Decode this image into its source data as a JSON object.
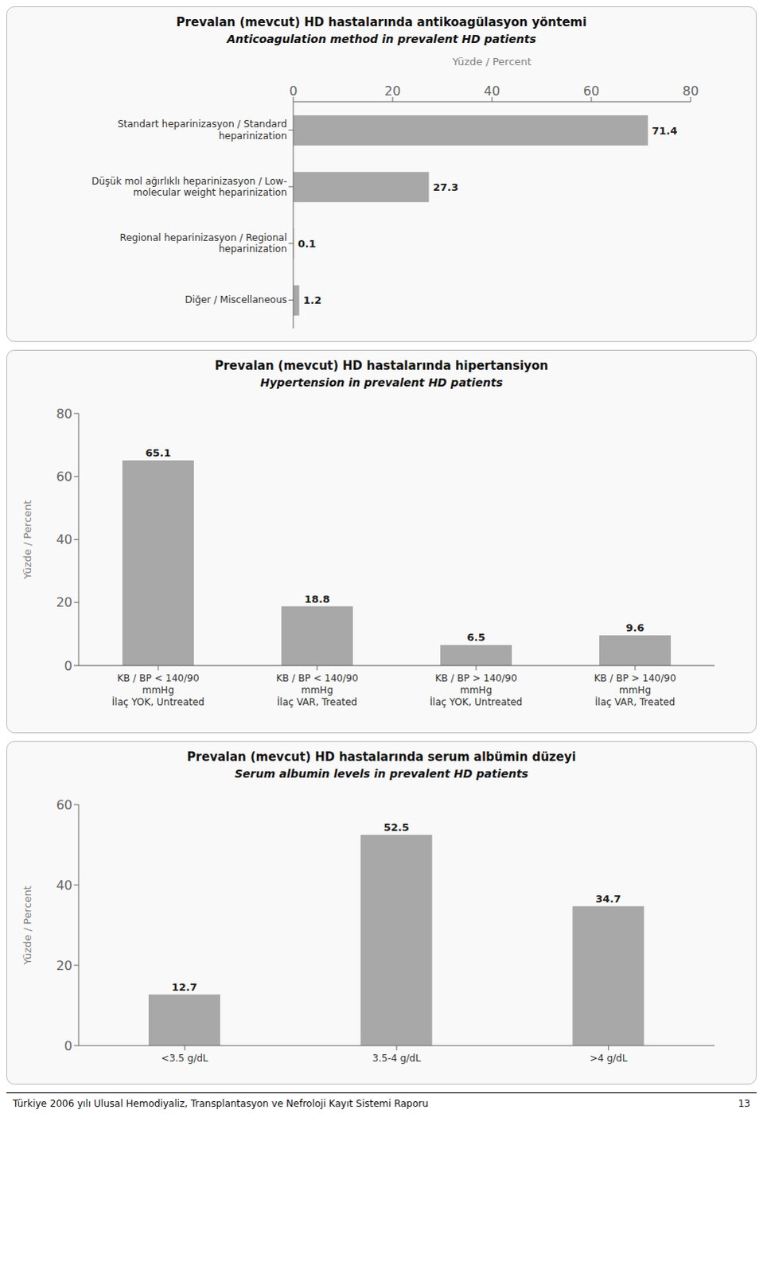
{
  "chart_data": [
    {
      "type": "bar",
      "title": "Prevalan (mevcut) HD hastalarında antikoagülasyon yöntemi",
      "subtitle": "Anticoagulation method in prevalent HD patients",
      "xlabel": "Yüzde / Percent",
      "orientation": "horizontal",
      "categories": [
        "Standart heparinizasyon / Standard\nheparinization",
        "Düşük mol ağırlıklı heparinizasyon / Low-\nmolecular weight heparinization",
        "Regional heparinizasyon / Regional\nheparinization",
        "Diğer / Miscellaneous"
      ],
      "values": [
        71.4,
        27.3,
        0.1,
        1.2
      ],
      "xlim": [
        0,
        80
      ],
      "xticks": [
        0,
        20,
        40,
        60,
        80
      ],
      "color": "#a8a8a8",
      "data_labels": true,
      "grid": false
    },
    {
      "type": "bar",
      "title": "Prevalan (mevcut) HD hastalarında hipertansiyon",
      "subtitle": "Hypertension in prevalent HD patients",
      "ylabel": "Yüzde / Percent",
      "categories": [
        "KB / BP < 140/90\nmmHg\nİlaç YOK, Untreated",
        "KB / BP < 140/90\nmmHg\nİlaç VAR, Treated",
        "KB / BP > 140/90\nmmHg\nİlaç YOK, Untreated",
        "KB / BP > 140/90\nmmHg\nİlaç VAR, Treated"
      ],
      "values": [
        65.1,
        18.8,
        6.5,
        9.6
      ],
      "ylim": [
        0,
        80
      ],
      "yticks": [
        0,
        20,
        40,
        60,
        80
      ],
      "color": "#a8a8a8",
      "data_labels": true,
      "grid": false
    },
    {
      "type": "bar",
      "title": "Prevalan (mevcut) HD hastalarında serum albümin düzeyi",
      "subtitle": "Serum albumin levels in prevalent HD patients",
      "ylabel": "Yüzde / Percent",
      "categories": [
        "<3.5 g/dL",
        "3.5-4 g/dL",
        ">4 g/dL"
      ],
      "values": [
        12.7,
        52.5,
        34.7
      ],
      "ylim": [
        0,
        60
      ],
      "yticks": [
        0,
        20,
        40,
        60
      ],
      "color": "#a8a8a8",
      "data_labels": true,
      "grid": false,
      "annotations": [
        "Türkiye 2006 yılı Ulusal Hemodiyaliz, Transplantasyon ve Nefroloji Kayıt Sistemi Raporu",
        "13"
      ]
    }
  ]
}
